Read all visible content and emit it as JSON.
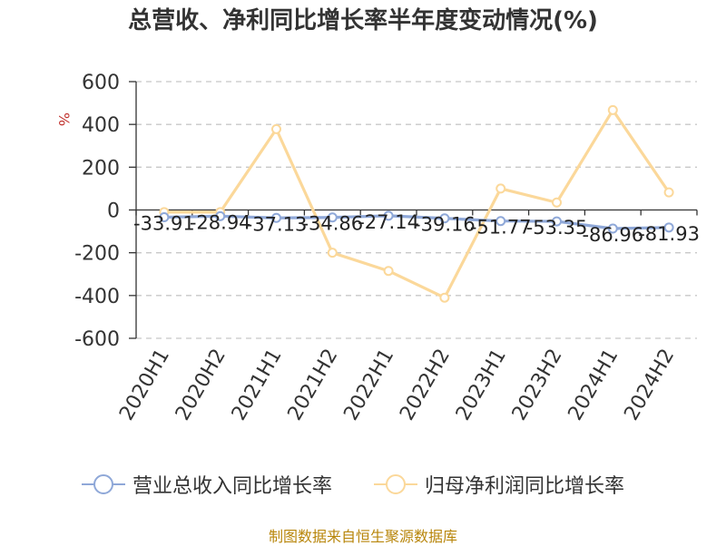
{
  "title": "总营收、净利同比增长率半年度变动情况(%)",
  "source_note": "制图数据来自恒生聚源数据库",
  "chart_data": {
    "type": "line",
    "title": "总营收、净利同比增长率半年度变动情况(%)",
    "unit_label": "%",
    "categories": [
      "2020H1",
      "2020H2",
      "2021H1",
      "2021H2",
      "2022H1",
      "2022H2",
      "2023H1",
      "2023H2",
      "2024H1",
      "2024H2"
    ],
    "ylim": [
      -600,
      600
    ],
    "yticks": [
      600,
      400,
      200,
      0,
      -200,
      -400,
      -600
    ],
    "grid": true,
    "legend_position": "bottom",
    "series": [
      {
        "name": "营业总收入同比增长率",
        "color": "#8fa8d8",
        "values": [
          -33.91,
          -28.94,
          -37.13,
          -34.86,
          -27.14,
          -39.16,
          -51.77,
          -53.35,
          -86.96,
          -81.93
        ],
        "labels": [
          "-33.91",
          "-28.94",
          "-37.13",
          "-34.86",
          "-27.14",
          "-39.16",
          "-51.77",
          "-53.35",
          "-86.96",
          "-81.93"
        ]
      },
      {
        "name": "归母净利润同比增长率",
        "color": "#fbd89a",
        "values": [
          -10,
          -10,
          378,
          -200,
          -285,
          -410,
          100,
          35,
          467,
          82
        ]
      }
    ]
  }
}
